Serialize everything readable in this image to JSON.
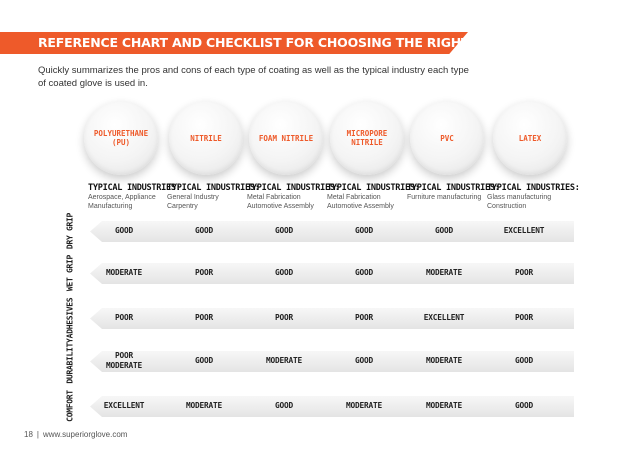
{
  "header": {
    "title": "Reference Chart and Checklist for Choosing the Right Glove Coating",
    "intro": "Quickly summarizes the pros and cons of each type of coating as well as the typical industry each type of coated glove is used in.",
    "accent_color": "#ee5a2a"
  },
  "coatings": [
    {
      "name": "Polyurethane (PU)",
      "industry_label": "Typical Industries:",
      "industries": [
        "Aerospace, Appliance",
        "Manufacturing"
      ]
    },
    {
      "name": "Nitrile",
      "industry_label": "Typical Industries:",
      "industries": [
        "General Industry",
        "Carpentry"
      ]
    },
    {
      "name": "Foam Nitrile",
      "industry_label": "Typical Industries:",
      "industries": [
        "Metal Fabrication",
        "Automotive Assembly"
      ]
    },
    {
      "name": "Micropore Nitrile",
      "industry_label": "Typical Industries:",
      "industries": [
        "Metal Fabrication",
        "Automotive Assembly"
      ]
    },
    {
      "name": "PVC",
      "industry_label": "Typical Industries:",
      "industries": [
        "Furniture manufacturing"
      ]
    },
    {
      "name": "Latex",
      "industry_label": "Typical Industries:",
      "industries": [
        "Glass manufacturing",
        "Construction"
      ]
    }
  ],
  "ratings": [
    {
      "category": "Dry Grip",
      "values": [
        [
          "Good"
        ],
        [
          "Good"
        ],
        [
          "Good"
        ],
        [
          "Good"
        ],
        [
          "Good"
        ],
        [
          "Excellent"
        ]
      ]
    },
    {
      "category": "Wet Grip",
      "values": [
        [
          "Moderate"
        ],
        [
          "Poor"
        ],
        [
          "Good"
        ],
        [
          "Good"
        ],
        [
          "Moderate"
        ],
        [
          "Poor"
        ]
      ]
    },
    {
      "category": "Adhesives",
      "values": [
        [
          "Poor"
        ],
        [
          "Poor"
        ],
        [
          "Poor"
        ],
        [
          "Poor"
        ],
        [
          "Excellent"
        ],
        [
          "Poor"
        ]
      ]
    },
    {
      "category": "Durability",
      "values": [
        [
          "Poor",
          "Moderate"
        ],
        [
          "Good"
        ],
        [
          "Moderate"
        ],
        [
          "Good"
        ],
        [
          "Moderate"
        ],
        [
          "Good"
        ]
      ]
    },
    {
      "category": "Comfort",
      "values": [
        [
          "Excellent"
        ],
        [
          "Moderate"
        ],
        [
          "Good"
        ],
        [
          "Moderate"
        ],
        [
          "Moderate"
        ],
        [
          "Good"
        ]
      ]
    }
  ],
  "footer": {
    "page": "18",
    "separator": "|",
    "url": "www.superiorglove.com"
  }
}
